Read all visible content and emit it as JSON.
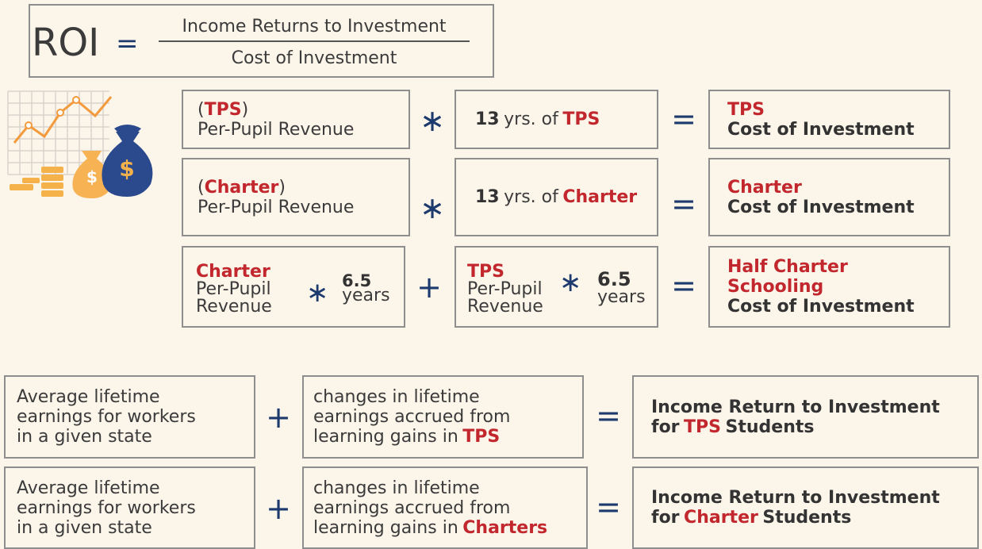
{
  "formula": {
    "lhs": "ROI",
    "eq": "=",
    "numerator": "Income Returns to Investment",
    "denominator": "Cost of Investment"
  },
  "cost_rows": [
    {
      "input": {
        "open": "(",
        "type": "TPS",
        "close": ")",
        "label": "Per-Pupil Revenue"
      },
      "op": "∗",
      "years": {
        "count": "13",
        "unit": "yrs. of",
        "type": "TPS"
      },
      "eq": "=",
      "result": {
        "type": "TPS",
        "label": "Cost of Investment"
      }
    },
    {
      "input": {
        "open": "(",
        "type": "Charter",
        "close": ")",
        "label": "Per-Pupil Revenue"
      },
      "op": "∗",
      "years": {
        "count": "13",
        "unit": "yrs. of",
        "type": "Charter"
      },
      "eq": "=",
      "result": {
        "type": "Charter",
        "label": "Cost of Investment"
      }
    }
  ],
  "half_row": {
    "charter": {
      "type": "Charter",
      "label1": "Per-Pupil",
      "label2": "Revenue",
      "op": "∗",
      "years": "6.5",
      "unit": "years"
    },
    "plus": "+",
    "tps": {
      "type": "TPS",
      "label1": "Per-Pupil",
      "label2": "Revenue",
      "op": "∗",
      "years": "6.5",
      "unit": "years"
    },
    "eq": "=",
    "result": {
      "type": "Half Charter Schooling",
      "label": "Cost of Investment"
    }
  },
  "return_rows": [
    {
      "base": [
        "Average lifetime",
        "earnings for workers",
        "in a given state"
      ],
      "plus": "+",
      "gain": [
        "changes in lifetime",
        "earnings accrued from"
      ],
      "gain_last": "learning gains in",
      "type": "TPS",
      "eq": "=",
      "result": {
        "line1": "Income Return to Investment",
        "pre": "for",
        "type": "TPS",
        "post": "Students"
      }
    },
    {
      "base": [
        "Average lifetime",
        "earnings for workers",
        "in a given state"
      ],
      "plus": "+",
      "gain": [
        "changes in lifetime",
        "earnings accrued from"
      ],
      "gain_last": "learning gains in",
      "type": "Charters",
      "eq": "=",
      "result": {
        "line1": "Income Return to Investment",
        "pre": "for",
        "type": "Charter",
        "post": "Students"
      }
    }
  ]
}
